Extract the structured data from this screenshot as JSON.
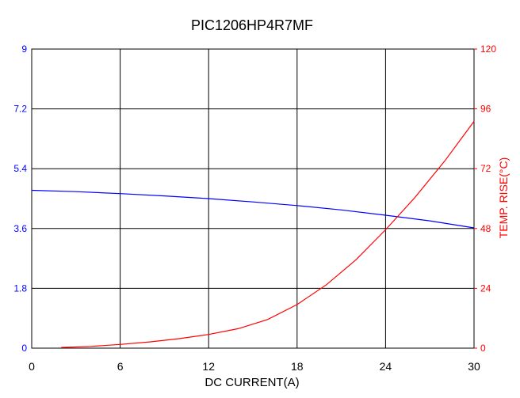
{
  "chart_data": {
    "type": "line",
    "title": "PIC1206HP4R7MF",
    "xlabel": "DC CURRENT(A)",
    "ylabel_left": "",
    "ylabel_right": "TEMP. RISE(°C)",
    "xlim": [
      0,
      30
    ],
    "ylim_left": [
      0,
      9
    ],
    "ylim_right": [
      0,
      120
    ],
    "x_ticks": [
      "0",
      "6",
      "12",
      "18",
      "24",
      "30"
    ],
    "y_left_ticks": [
      "0",
      "1.8",
      "3.6",
      "5.4",
      "7.2",
      "9"
    ],
    "y_right_ticks": [
      "0",
      "24",
      "48",
      "72",
      "96",
      "120"
    ],
    "grid": true,
    "colors": {
      "left_axis": "#0000ff",
      "right_axis": "#ff0000",
      "grid": "#000000"
    },
    "series": [
      {
        "axis": "left",
        "color": "#0000ff",
        "x": [
          0,
          3,
          6,
          9,
          12,
          15,
          18,
          21,
          24,
          27,
          30
        ],
        "y": [
          4.75,
          4.71,
          4.65,
          4.58,
          4.5,
          4.4,
          4.29,
          4.16,
          4.0,
          3.83,
          3.62
        ]
      },
      {
        "axis": "right",
        "color": "#ff0000",
        "x": [
          2,
          4,
          6,
          8,
          10,
          12,
          14,
          16,
          18,
          20,
          22,
          24,
          26,
          28,
          30
        ],
        "y": [
          0.3,
          0.7,
          1.5,
          2.5,
          3.8,
          5.5,
          7.8,
          11.5,
          17.5,
          25.5,
          35.5,
          47.5,
          60.5,
          75,
          91
        ]
      }
    ]
  }
}
